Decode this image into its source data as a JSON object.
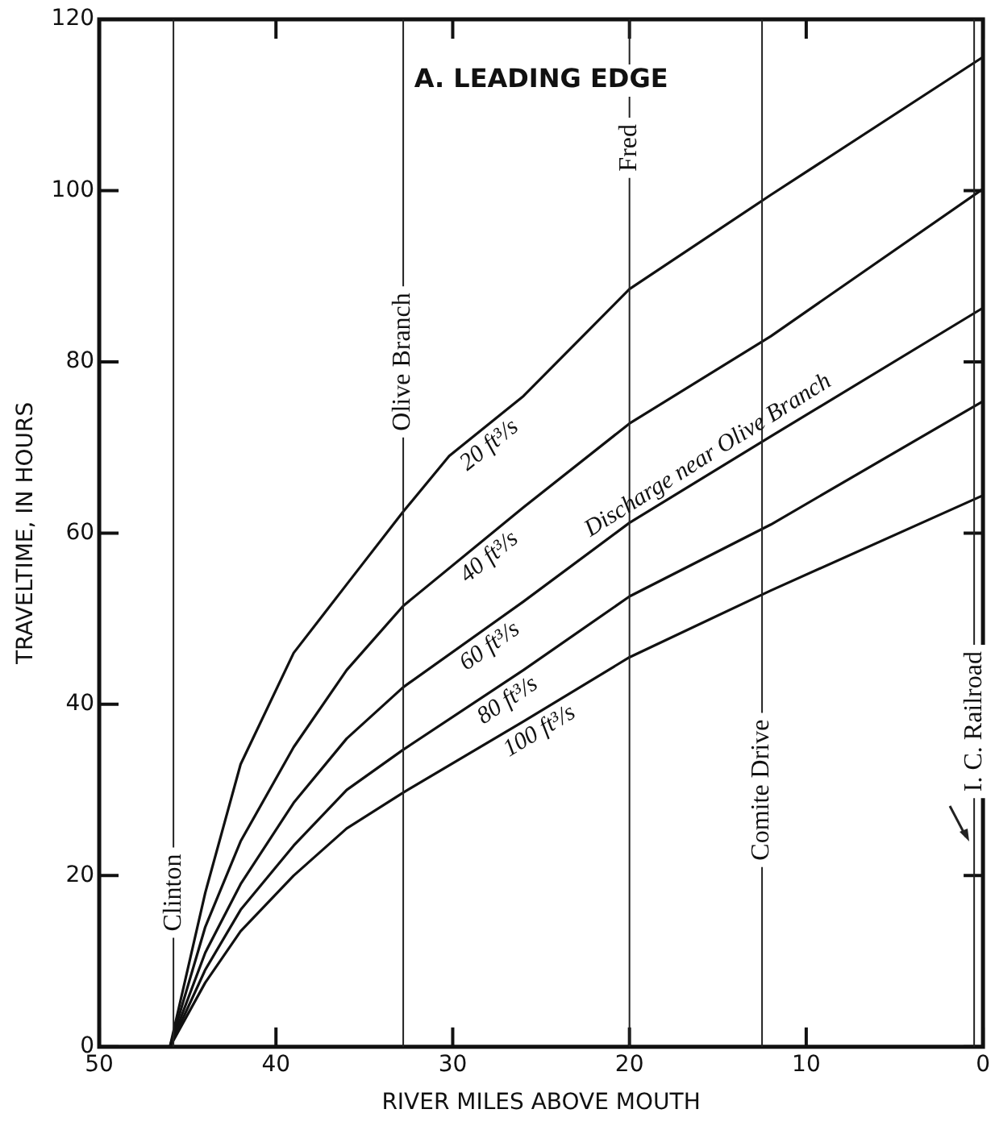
{
  "chart_data": {
    "type": "line",
    "title": "A. LEADING EDGE",
    "xlabel": "RIVER MILES ABOVE MOUTH",
    "ylabel": "TRAVELTIME, IN HOURS",
    "xlim": [
      50,
      0
    ],
    "xticks": [
      50,
      40,
      30,
      20,
      10,
      0
    ],
    "ylim": [
      0,
      120
    ],
    "yticks": [
      0,
      20,
      40,
      60,
      80,
      100,
      120
    ],
    "grid": false,
    "legend": false,
    "marker": "none",
    "line_style": "solid",
    "series": [
      {
        "name": "20 ft³/s",
        "color": "#111111",
        "x": [
          46,
          44,
          42,
          39,
          36,
          32.8,
          30.2,
          26,
          20,
          12,
          0
        ],
        "values": [
          0,
          18,
          33,
          46,
          54,
          62.5,
          69,
          76,
          88.5,
          99.5,
          115.6
        ]
      },
      {
        "name": "40 ft³/s",
        "color": "#111111",
        "x": [
          46,
          44,
          42,
          39,
          36,
          32.8,
          26,
          20,
          12,
          0
        ],
        "values": [
          0,
          14,
          24,
          35,
          44,
          51.5,
          63,
          72.8,
          83,
          100.2
        ]
      },
      {
        "name": "60 ft³/s",
        "color": "#111111",
        "x": [
          46,
          44,
          42,
          39,
          36,
          32.8,
          26,
          20,
          12,
          0
        ],
        "values": [
          0,
          11,
          19,
          28.5,
          36,
          42,
          52,
          61.2,
          71.3,
          86.3
        ]
      },
      {
        "name": "80 ft³/s",
        "color": "#111111",
        "x": [
          46,
          44,
          42,
          39,
          36,
          32.8,
          26,
          20,
          12,
          0
        ],
        "values": [
          0,
          9,
          16,
          23.5,
          30,
          34.7,
          44,
          52.6,
          61,
          75.4
        ]
      },
      {
        "name": "100 ft³/s",
        "color": "#111111",
        "x": [
          46,
          44,
          42,
          39,
          36,
          32.8,
          26,
          20,
          12,
          0
        ],
        "values": [
          0,
          7.5,
          13.5,
          20,
          25.5,
          29.7,
          38,
          45.5,
          53.3,
          64.4
        ]
      }
    ],
    "ref_lines": [
      {
        "axis": "x",
        "value": 45.8,
        "label": "Clinton",
        "color": "#222222"
      },
      {
        "axis": "x",
        "value": 32.8,
        "label": "Olive Branch",
        "color": "#222222"
      },
      {
        "axis": "x",
        "value": 20,
        "label": "Fred",
        "color": "#222222"
      },
      {
        "axis": "x",
        "value": 12.5,
        "label": "Comite Drive",
        "color": "#222222"
      },
      {
        "axis": "x",
        "value": 0.5,
        "label": "I. C. Railroad",
        "color": "#222222"
      }
    ],
    "annotations": [
      "Discharge near Olive Branch"
    ]
  }
}
